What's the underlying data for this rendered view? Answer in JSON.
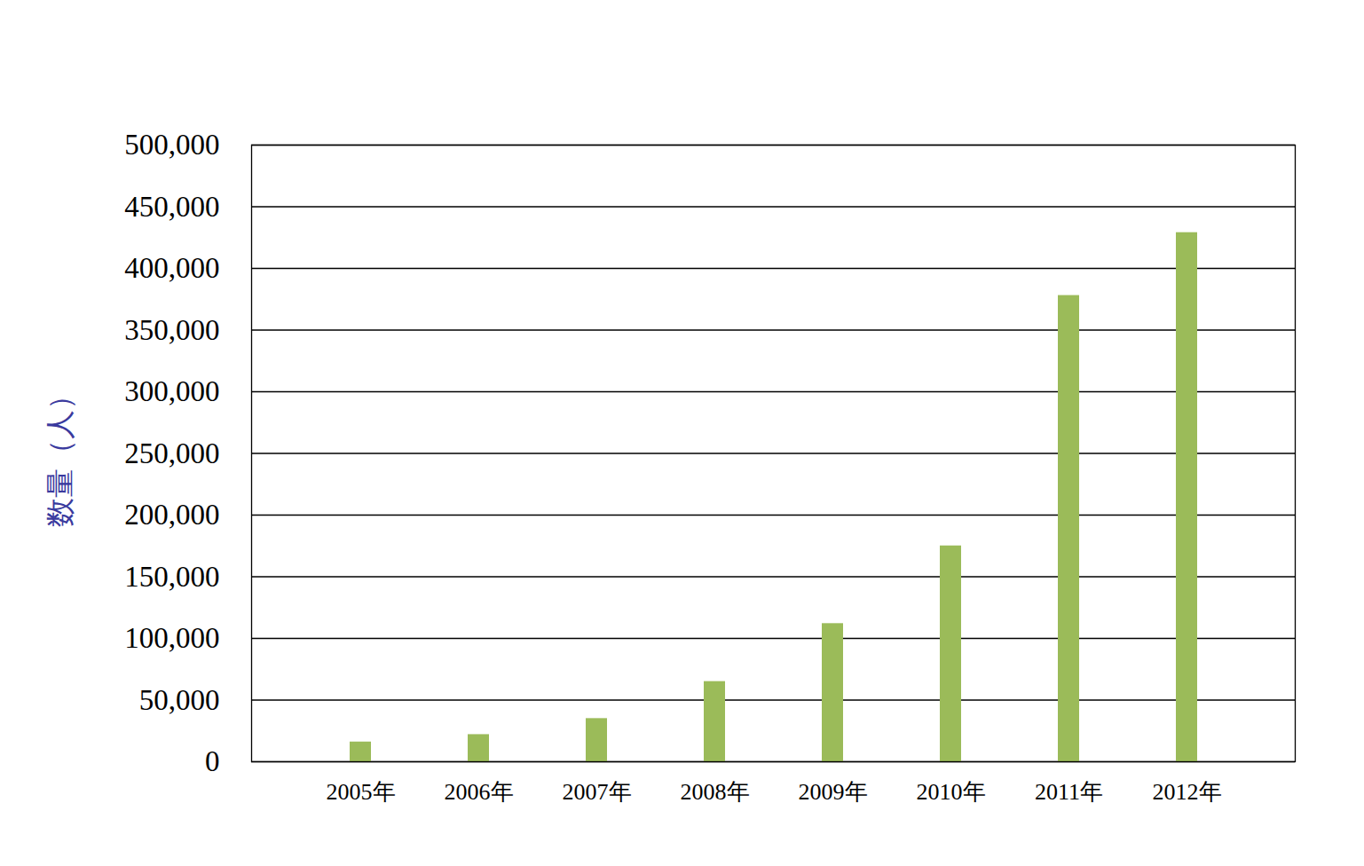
{
  "chart_data": {
    "type": "bar",
    "y_label": "数量（人）",
    "categories": [
      "2005年",
      "2006年",
      "2007年",
      "2008年",
      "2009年",
      "2010年",
      "2011年",
      "2012年"
    ],
    "values": [
      16000,
      22000,
      35000,
      65000,
      112000,
      175000,
      378000,
      429000
    ],
    "color": "#9bbb59",
    "ylim": [
      0,
      500000
    ],
    "yticks": [
      0,
      50000,
      100000,
      150000,
      200000,
      250000,
      300000,
      350000,
      400000,
      450000,
      500000
    ],
    "grid": true
  }
}
